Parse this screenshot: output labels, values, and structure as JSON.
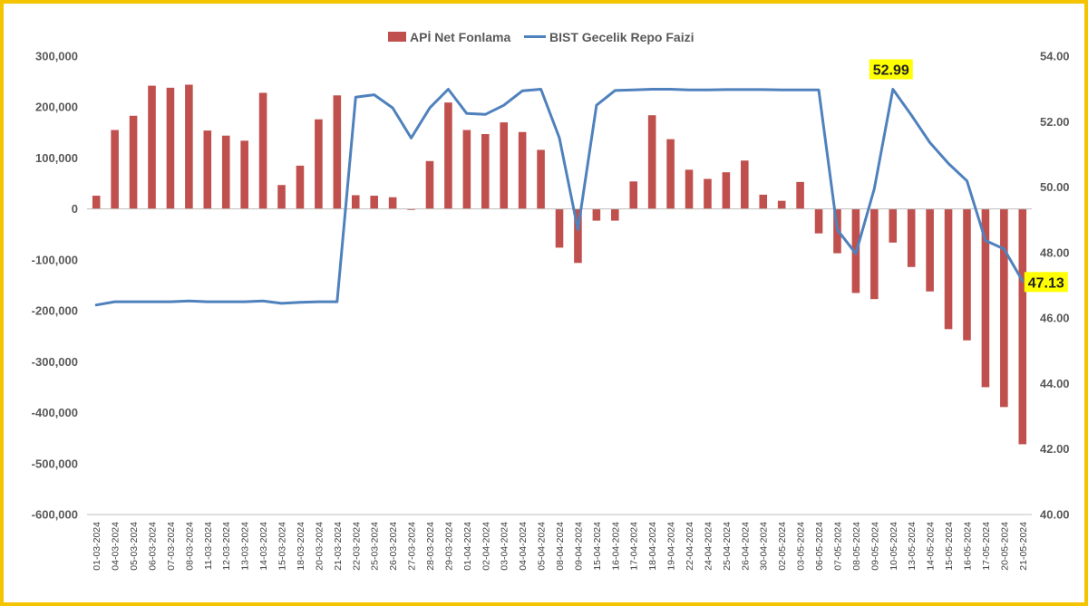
{
  "chart_data": {
    "type": "bar+line",
    "title": "",
    "colors": {
      "bars": "#c0504d",
      "line": "#4f81bd",
      "callout_bg": "#ffff00",
      "border": "#f5c400"
    },
    "legend": {
      "position": "top-center",
      "entries": [
        "APİ Net Fonlama",
        "BIST Gecelik Repo Faizi"
      ]
    },
    "categories": [
      "01-03-2024",
      "04-03-2024",
      "05-03-2024",
      "06-03-2024",
      "07-03-2024",
      "08-03-2024",
      "11-03-2024",
      "12-03-2024",
      "13-03-2024",
      "14-03-2024",
      "15-03-2024",
      "18-03-2024",
      "20-03-2024",
      "21-03-2024",
      "22-03-2024",
      "25-03-2024",
      "26-03-2024",
      "27-03-2024",
      "28-03-2024",
      "29-03-2024",
      "01-04-2024",
      "02-04-2024",
      "03-04-2024",
      "04-04-2024",
      "05-04-2024",
      "08-04-2024",
      "09-04-2024",
      "15-04-2024",
      "16-04-2024",
      "17-04-2024",
      "18-04-2024",
      "19-04-2024",
      "22-04-2024",
      "24-04-2024",
      "25-04-2024",
      "26-04-2024",
      "30-04-2024",
      "02-05-2024",
      "03-05-2024",
      "06-05-2024",
      "07-05-2024",
      "08-05-2024",
      "09-05-2024",
      "10-05-2024",
      "13-05-2024",
      "14-05-2024",
      "15-05-2024",
      "16-05-2024",
      "17-05-2024",
      "20-05-2024",
      "21-05-2024"
    ],
    "series": [
      {
        "name": "APİ Net Fonlama",
        "type": "bar",
        "axis": "left",
        "values": [
          26000,
          155000,
          183000,
          242000,
          238000,
          244000,
          154000,
          144000,
          134000,
          228000,
          47000,
          85000,
          176000,
          223000,
          27000,
          26000,
          23000,
          -2000,
          94000,
          209000,
          155000,
          147000,
          170000,
          151000,
          116000,
          -76000,
          -106000,
          -23000,
          -23000,
          54000,
          184000,
          137000,
          77000,
          59000,
          72000,
          95000,
          28000,
          16000,
          53000,
          -48000,
          -87000,
          -165000,
          -177000,
          -66000,
          -114000,
          -162000,
          -236000,
          -258000,
          -350000,
          -389000,
          -462000
        ]
      },
      {
        "name": "BIST Gecelik Repo Faizi",
        "type": "line",
        "axis": "right",
        "values": [
          46.4,
          46.5,
          46.5,
          46.5,
          46.5,
          46.52,
          46.5,
          46.5,
          46.5,
          46.52,
          46.45,
          46.48,
          46.5,
          46.5,
          52.75,
          52.82,
          52.42,
          51.5,
          52.42,
          52.99,
          52.25,
          52.22,
          52.5,
          52.94,
          52.99,
          51.5,
          48.7,
          52.5,
          52.95,
          52.97,
          52.99,
          52.99,
          52.97,
          52.97,
          52.98,
          52.98,
          52.98,
          52.97,
          52.97,
          52.97,
          48.7,
          47.97,
          49.95,
          52.99,
          52.2,
          51.36,
          50.72,
          50.19,
          48.37,
          48.11,
          47.13
        ]
      }
    ],
    "y_left": {
      "min": -600000,
      "max": 300000,
      "step": 100000,
      "tick_labels": [
        "300,000",
        "200,000",
        "100,000",
        "0",
        "-100,000",
        "-200,000",
        "-300,000",
        "-400,000",
        "-500,000",
        "-600,000"
      ]
    },
    "y_right": {
      "min": 40,
      "max": 54,
      "step": 2,
      "tick_labels": [
        "54.00",
        "52.00",
        "50.00",
        "48.00",
        "46.00",
        "44.00",
        "42.00",
        "40.00"
      ]
    },
    "annotations": [
      {
        "text": "52.99",
        "series": "BIST Gecelik Repo Faizi",
        "index": 43
      },
      {
        "text": "47.13",
        "series": "BIST Gecelik Repo Faizi",
        "index": 50
      }
    ],
    "grid": false
  }
}
